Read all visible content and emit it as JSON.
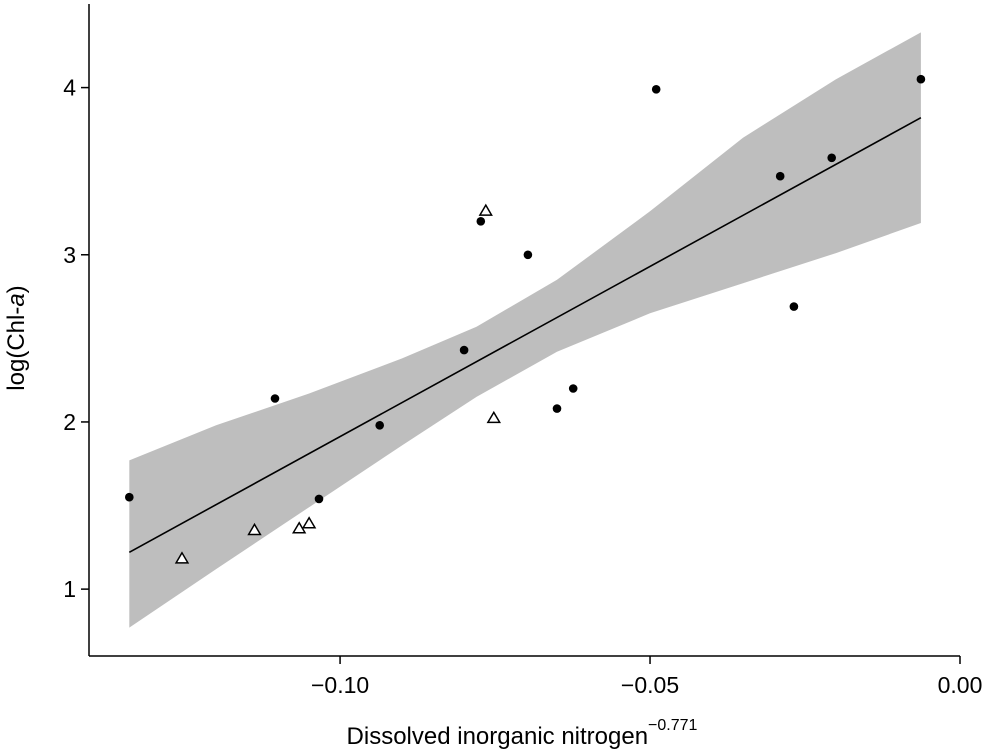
{
  "chart_data": {
    "type": "scatter",
    "title": "",
    "xlabel_base": "Dissolved inorganic nitrogen",
    "xlabel_exponent": "−0.771",
    "ylabel_prefix": "log(Chl-",
    "ylabel_italic": "a",
    "ylabel_suffix": ")",
    "xlim": [
      -0.1405,
      0.0
    ],
    "ylim": [
      0.6,
      4.5
    ],
    "x_ticks": [
      {
        "value": -0.1,
        "label": "−0.10"
      },
      {
        "value": -0.05,
        "label": "−0.05"
      },
      {
        "value": 0.0,
        "label": "0.00"
      }
    ],
    "y_ticks": [
      {
        "value": 1,
        "label": "1"
      },
      {
        "value": 2,
        "label": "2"
      },
      {
        "value": 3,
        "label": "3"
      },
      {
        "value": 4,
        "label": "4"
      }
    ],
    "grid": false,
    "legend": "none",
    "series": [
      {
        "marker": "filled-circle",
        "color": "#000000",
        "points": [
          {
            "x": -0.134,
            "y": 1.55
          },
          {
            "x": -0.1105,
            "y": 2.14
          },
          {
            "x": -0.1034,
            "y": 1.54
          },
          {
            "x": -0.0936,
            "y": 1.98
          },
          {
            "x": -0.08,
            "y": 2.43
          },
          {
            "x": -0.0773,
            "y": 3.2
          },
          {
            "x": -0.0697,
            "y": 3.0
          },
          {
            "x": -0.065,
            "y": 2.08
          },
          {
            "x": -0.0624,
            "y": 2.2
          },
          {
            "x": -0.049,
            "y": 3.99
          },
          {
            "x": -0.029,
            "y": 3.47
          },
          {
            "x": -0.0268,
            "y": 2.69
          },
          {
            "x": -0.0207,
            "y": 3.58
          },
          {
            "x": -0.0063,
            "y": 4.05
          }
        ]
      },
      {
        "marker": "open-triangle",
        "color": "#000000",
        "points": [
          {
            "x": -0.1255,
            "y": 1.18
          },
          {
            "x": -0.1138,
            "y": 1.35
          },
          {
            "x": -0.1066,
            "y": 1.36
          },
          {
            "x": -0.105,
            "y": 1.39
          },
          {
            "x": -0.0765,
            "y": 3.26
          },
          {
            "x": -0.0752,
            "y": 2.02
          }
        ]
      }
    ],
    "fit_line": {
      "color": "#000000",
      "points": [
        {
          "x": -0.134,
          "y": 1.22
        },
        {
          "x": -0.0063,
          "y": 3.82
        }
      ]
    },
    "confidence_band": {
      "color": "#bebebe",
      "points": [
        {
          "x": -0.134,
          "lower": 0.77,
          "upper": 1.77
        },
        {
          "x": -0.12,
          "lower": 1.12,
          "upper": 1.98
        },
        {
          "x": -0.105,
          "lower": 1.49,
          "upper": 2.17
        },
        {
          "x": -0.09,
          "lower": 1.86,
          "upper": 2.38
        },
        {
          "x": -0.078,
          "lower": 2.15,
          "upper": 2.57
        },
        {
          "x": -0.065,
          "lower": 2.42,
          "upper": 2.85
        },
        {
          "x": -0.05,
          "lower": 2.65,
          "upper": 3.26
        },
        {
          "x": -0.035,
          "lower": 2.83,
          "upper": 3.7
        },
        {
          "x": -0.02,
          "lower": 3.01,
          "upper": 4.05
        },
        {
          "x": -0.0063,
          "lower": 3.19,
          "upper": 4.33
        }
      ]
    }
  }
}
